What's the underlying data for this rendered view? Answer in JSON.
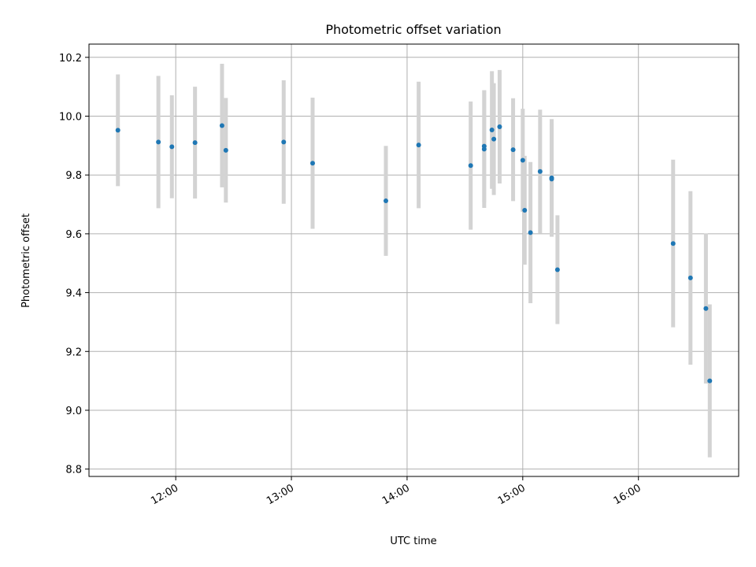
{
  "chart_data": {
    "type": "scatter",
    "title": "Photometric offset variation",
    "xlabel": "UTC time",
    "ylabel": "Photometric offset",
    "xlim": [
      "11:15",
      "16:52"
    ],
    "ylim": [
      8.775,
      10.245
    ],
    "x_ticks": [
      "12:00",
      "13:00",
      "14:00",
      "15:00",
      "16:00"
    ],
    "y_ticks": [
      8.8,
      9.0,
      9.2,
      9.4,
      9.6,
      9.8,
      10.0,
      10.2
    ],
    "grid": true,
    "point_color": "#1f77b4",
    "errorbar_color": "#d3d3d3",
    "points": [
      {
        "time": "11:30",
        "y": 9.952,
        "err": 0.19
      },
      {
        "time": "11:51",
        "y": 9.912,
        "err": 0.225
      },
      {
        "time": "11:58",
        "y": 9.896,
        "err": 0.175
      },
      {
        "time": "12:10",
        "y": 9.91,
        "err": 0.19
      },
      {
        "time": "12:24",
        "y": 9.968,
        "err": 0.21
      },
      {
        "time": "12:26",
        "y": 9.884,
        "err": 0.178
      },
      {
        "time": "12:56",
        "y": 9.912,
        "err": 0.21
      },
      {
        "time": "13:11",
        "y": 9.84,
        "err": 0.223
      },
      {
        "time": "13:49",
        "y": 9.712,
        "err": 0.187
      },
      {
        "time": "14:06",
        "y": 9.902,
        "err": 0.215
      },
      {
        "time": "14:33",
        "y": 9.832,
        "err": 0.218
      },
      {
        "time": "14:40",
        "y": 9.888,
        "err": 0.2
      },
      {
        "time": "14:40",
        "y": 9.898,
        "err": 0.19
      },
      {
        "time": "14:44",
        "y": 9.953,
        "err": 0.2
      },
      {
        "time": "14:45",
        "y": 9.922,
        "err": 0.19
      },
      {
        "time": "14:48",
        "y": 9.964,
        "err": 0.193
      },
      {
        "time": "14:55",
        "y": 9.886,
        "err": 0.175
      },
      {
        "time": "15:00",
        "y": 9.85,
        "err": 0.175
      },
      {
        "time": "15:01",
        "y": 9.68,
        "err": 0.185
      },
      {
        "time": "15:04",
        "y": 9.604,
        "err": 0.24
      },
      {
        "time": "15:09",
        "y": 9.812,
        "err": 0.21
      },
      {
        "time": "15:15",
        "y": 9.79,
        "err": 0.2
      },
      {
        "time": "15:15",
        "y": 9.786,
        "err": 0.19
      },
      {
        "time": "15:18",
        "y": 9.478,
        "err": 0.185
      },
      {
        "time": "16:18",
        "y": 9.567,
        "err": 0.285
      },
      {
        "time": "16:27",
        "y": 9.45,
        "err": 0.295
      },
      {
        "time": "16:35",
        "y": 9.346,
        "err": 0.255
      },
      {
        "time": "16:37",
        "y": 9.1,
        "err": 0.26
      }
    ]
  }
}
